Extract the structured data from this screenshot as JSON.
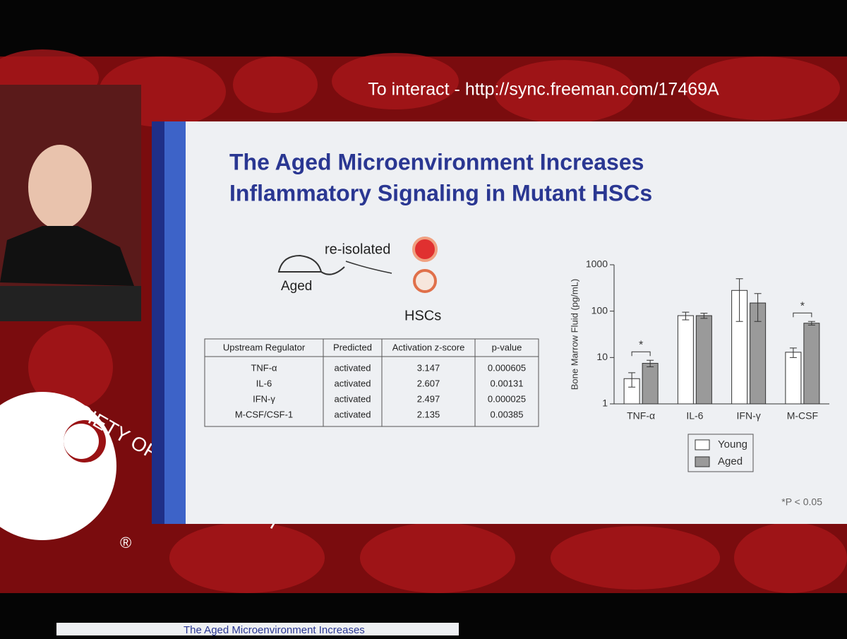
{
  "banner": {
    "text": "To interact - http://sync.freeman.com/17469A"
  },
  "slide": {
    "title_line1": "The Aged Microenvironment Increases",
    "title_line2": "Inflammatory Signaling in Mutant HSCs",
    "diagram": {
      "arrow_label": "re-isolated",
      "mouse_label": "Aged",
      "cells_label": "HSCs"
    },
    "table": {
      "header": [
        "Upstream Regulator",
        "Predicted",
        "Activation z-score",
        "p-value"
      ],
      "rows": [
        [
          "TNF-α",
          "activated",
          "3.147",
          "0.000605"
        ],
        [
          "IL-6",
          "activated",
          "2.607",
          "0.00131"
        ],
        [
          "IFN-γ",
          "activated",
          "2.497",
          "0.000025"
        ],
        [
          "M-CSF/CSF-1",
          "activated",
          "2.135",
          "0.00385"
        ]
      ]
    },
    "footnote": "*P < 0.05"
  },
  "logo": {
    "text": "OCIETY OF HEMATOLOGY",
    "mark": "®"
  },
  "next_slide_thumbnail": "The Aged Microenvironment Increases",
  "chart_data": {
    "type": "bar",
    "ylabel": "Bone Marrow Fluid (pg/mL)",
    "log_scale": true,
    "categories": [
      "TNF-α",
      "IL-6",
      "IFN-γ",
      "M-CSF"
    ],
    "series": [
      {
        "name": "Young",
        "color": "#ffffff",
        "values": [
          3.5,
          80,
          280,
          13
        ],
        "errors": [
          1.2,
          15,
          220,
          3
        ]
      },
      {
        "name": "Aged",
        "color": "#9a9a9a",
        "values": [
          7.5,
          80,
          150,
          55
        ],
        "errors": [
          1.2,
          10,
          90,
          5
        ]
      }
    ],
    "significance_labels": [
      "*",
      null,
      null,
      "*"
    ],
    "ylim": [
      1,
      1000
    ],
    "yticks": [
      1,
      10,
      100,
      1000
    ]
  }
}
